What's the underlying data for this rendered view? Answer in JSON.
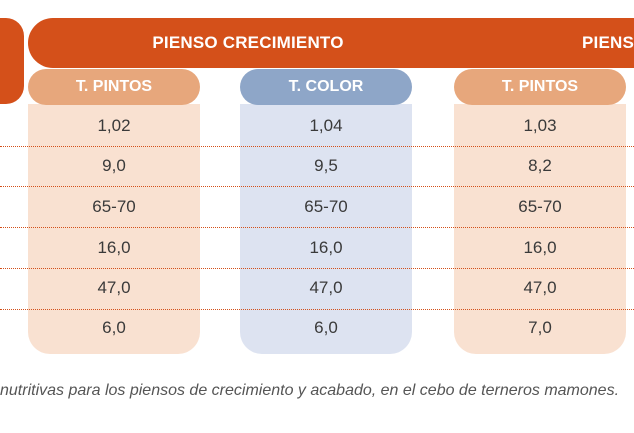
{
  "table": {
    "groups": [
      {
        "label": "PIENSO CRECIMIENTO"
      },
      {
        "label": "PIENSO"
      }
    ],
    "columns": [
      {
        "label": "T. PINTOS",
        "color": "#e7a77c",
        "body_color": "#f9e1d1",
        "values": [
          "1,02",
          "9,0",
          "65-70",
          "16,0",
          "47,0",
          "6,0"
        ]
      },
      {
        "label": "T. COLOR",
        "color": "#8ea6c8",
        "body_color": "#dde3f1",
        "values": [
          "1,04",
          "9,5",
          "65-70",
          "16,0",
          "47,0",
          "6,0"
        ]
      },
      {
        "label": "T. PINTOS",
        "color": "#e7a77c",
        "body_color": "#f9e1d1",
        "values": [
          "1,03",
          "8,2",
          "65-70",
          "16,0",
          "47,0",
          "7,0"
        ]
      }
    ]
  },
  "caption": "nutritivas para los piensos de crecimiento y acabado, en el cebo de terneros mamones.",
  "colors": {
    "band": "#d4501a",
    "dotted_rule": "#d4501a"
  }
}
